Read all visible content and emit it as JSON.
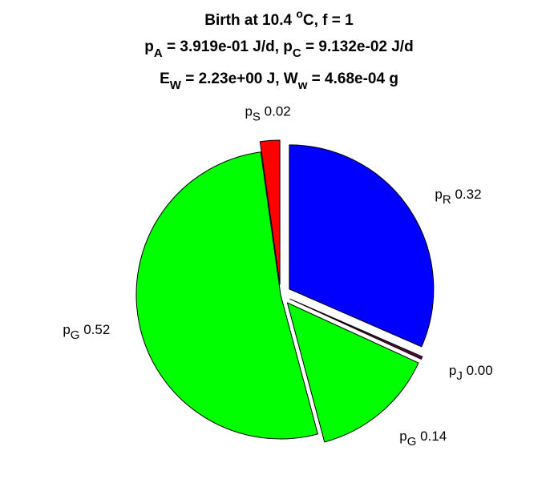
{
  "chart_data": {
    "type": "pie",
    "title_lines": [
      {
        "parts": [
          {
            "t": "Birth at 10.4 "
          },
          {
            "t": "o",
            "pos": "sup"
          },
          {
            "t": "C, f = 1"
          }
        ]
      },
      {
        "parts": [
          {
            "t": "p"
          },
          {
            "t": "A",
            "pos": "sub"
          },
          {
            "t": " = 3.919e-01 J/d, p"
          },
          {
            "t": "C",
            "pos": "sub"
          },
          {
            "t": " = 9.132e-02 J/d"
          }
        ]
      },
      {
        "parts": [
          {
            "t": "E"
          },
          {
            "t": "W",
            "pos": "sub"
          },
          {
            "t": " = 2.23e+00 J, W"
          },
          {
            "t": "w",
            "pos": "sub"
          },
          {
            "t": " = 4.68e-04 g"
          }
        ]
      }
    ],
    "slices": [
      {
        "name": "p",
        "sub": "R",
        "label_value": "0.32",
        "value": 0.3155,
        "color": "#0000ff",
        "exploded": true
      },
      {
        "name": "p",
        "sub": "J",
        "label_value": "0.00",
        "value": 0.003,
        "color": "#5a0a3a",
        "exploded": true
      },
      {
        "name": "p",
        "sub": "G",
        "label_value": "0.14",
        "value": 0.14,
        "color": "#00ff00",
        "exploded": true
      },
      {
        "name": "p",
        "sub": "G",
        "label_value": "0.52",
        "value": 0.5195,
        "color": "#00ff00",
        "exploded": false
      },
      {
        "name": "p",
        "sub": "S",
        "label_value": "0.02",
        "value": 0.022,
        "color": "#ff0000",
        "exploded": true
      }
    ]
  }
}
